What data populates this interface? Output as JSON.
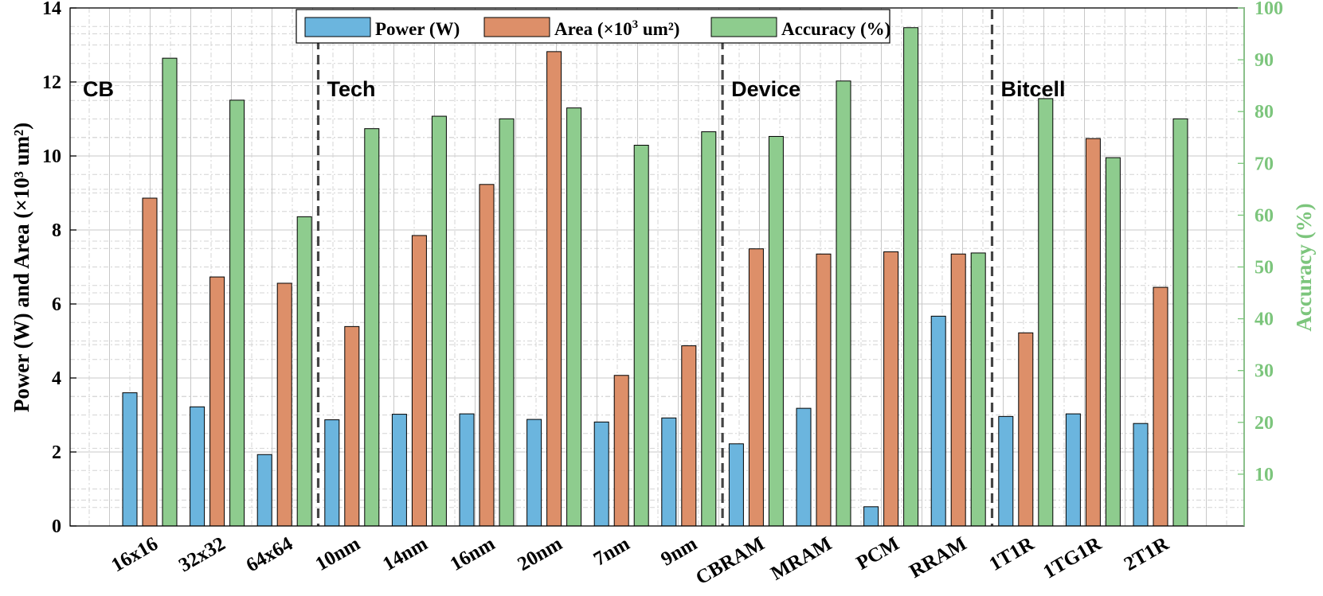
{
  "chart_data": {
    "type": "bar",
    "categories": [
      "16x16",
      "32x32",
      "64x64",
      "10nm",
      "14nm",
      "16nm",
      "20nm",
      "7nm",
      "9nm",
      "CBRAM",
      "MRAM",
      "PCM",
      "RRAM",
      "1T1R",
      "1TG1R",
      "2T1R"
    ],
    "series": [
      {
        "name": "Power (W)",
        "axis": "left",
        "color": "#6bb5de",
        "values": [
          3.6,
          3.22,
          1.93,
          2.87,
          3.02,
          3.03,
          2.88,
          2.81,
          2.92,
          2.22,
          3.18,
          0.52,
          5.67,
          2.96,
          3.03,
          2.77
        ]
      },
      {
        "name": "Area (×10³ um²)",
        "axis": "left",
        "color": "#dd8f69",
        "values": [
          8.86,
          6.73,
          6.56,
          5.39,
          7.85,
          9.23,
          12.82,
          4.07,
          4.87,
          7.49,
          7.35,
          7.41,
          7.35,
          5.22,
          10.47,
          6.45
        ]
      },
      {
        "name": "Accuracy (%)",
        "axis": "right",
        "color": "#8ecc8e",
        "values": [
          90.3,
          82.2,
          59.7,
          76.7,
          79.1,
          78.6,
          80.7,
          73.5,
          76.1,
          75.2,
          85.9,
          96.2,
          52.7,
          82.5,
          71.1,
          78.6
        ]
      }
    ],
    "ylim": [
      0,
      14
    ],
    "yticks": [
      "0",
      "2",
      "4",
      "6",
      "8",
      "10",
      "12",
      "14"
    ],
    "y2lim": [
      0,
      100
    ],
    "y2ticks": [
      "10",
      "20",
      "30",
      "40",
      "50",
      "60",
      "70",
      "80",
      "90",
      "100"
    ],
    "ylabel": "Power (W) and Area (×10³ um²)",
    "y2label": "Accuracy (%)",
    "legend_labels": [
      "Power (W)",
      "Area (×10",
      "3",
      " um²)",
      "Accuracy (%)"
    ],
    "groups": [
      {
        "label": "CB",
        "start_index": 0
      },
      {
        "label": "Tech",
        "start_index": 3
      },
      {
        "label": "Device",
        "start_index": 9
      },
      {
        "label": "Bitcell",
        "start_index": 13
      }
    ],
    "legend_position": "top-center",
    "grid": true
  }
}
